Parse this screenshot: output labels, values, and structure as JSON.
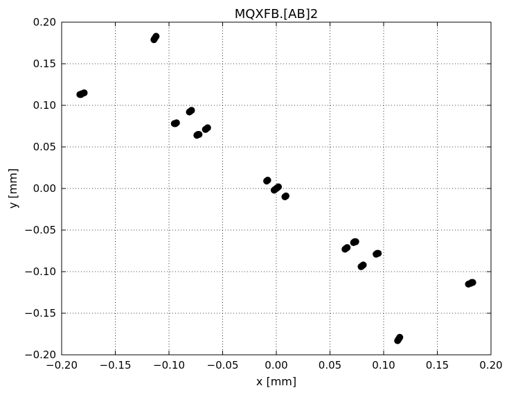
{
  "chart_data": {
    "type": "scatter",
    "title": "MQXFB.[AB]2",
    "xlabel": "x [mm]",
    "ylabel": "y [mm]",
    "xlim": [
      -0.2,
      0.2
    ],
    "ylim": [
      -0.2,
      0.2
    ],
    "xticks": [
      -0.2,
      -0.15,
      -0.1,
      -0.05,
      0.0,
      0.05,
      0.1,
      0.15,
      0.2
    ],
    "yticks": [
      -0.2,
      -0.15,
      -0.1,
      -0.05,
      0.0,
      0.05,
      0.1,
      0.15,
      0.2
    ],
    "xtick_labels": [
      "−0.20",
      "−0.15",
      "−0.10",
      "−0.05",
      "0.00",
      "0.05",
      "0.10",
      "0.15",
      "0.20"
    ],
    "ytick_labels": [
      "−0.20",
      "−0.15",
      "−0.10",
      "−0.05",
      "0.00",
      "0.05",
      "0.10",
      "0.15",
      "0.20"
    ],
    "grid": true,
    "marker_color": "#000000",
    "series": [
      {
        "points": [
          [
            -0.183,
            0.113
          ],
          [
            -0.182,
            0.113
          ],
          [
            -0.181,
            0.114
          ],
          [
            -0.179,
            0.115
          ],
          [
            -0.114,
            0.179
          ],
          [
            -0.113,
            0.181
          ],
          [
            -0.112,
            0.183
          ],
          [
            -0.095,
            0.078
          ],
          [
            -0.094,
            0.078
          ],
          [
            -0.093,
            0.079
          ],
          [
            -0.081,
            0.092
          ],
          [
            -0.08,
            0.093
          ],
          [
            -0.079,
            0.094
          ],
          [
            -0.074,
            0.064
          ],
          [
            -0.073,
            0.065
          ],
          [
            -0.072,
            0.065
          ],
          [
            -0.066,
            0.071
          ],
          [
            -0.065,
            0.072
          ],
          [
            -0.064,
            0.073
          ],
          [
            -0.009,
            0.009
          ],
          [
            -0.008,
            0.01
          ],
          [
            -0.002,
            -0.002
          ],
          [
            -0.001,
            -0.001
          ],
          [
            0.0,
            0.0
          ],
          [
            0.001,
            0.001
          ],
          [
            0.002,
            0.002
          ],
          [
            0.008,
            -0.01
          ],
          [
            0.009,
            -0.009
          ],
          [
            0.064,
            -0.073
          ],
          [
            0.065,
            -0.072
          ],
          [
            0.066,
            -0.071
          ],
          [
            0.072,
            -0.065
          ],
          [
            0.073,
            -0.064
          ],
          [
            0.074,
            -0.064
          ],
          [
            0.079,
            -0.094
          ],
          [
            0.08,
            -0.093
          ],
          [
            0.081,
            -0.092
          ],
          [
            0.093,
            -0.079
          ],
          [
            0.094,
            -0.078
          ],
          [
            0.095,
            -0.078
          ],
          [
            0.113,
            -0.183
          ],
          [
            0.114,
            -0.181
          ],
          [
            0.115,
            -0.179
          ],
          [
            0.179,
            -0.115
          ],
          [
            0.181,
            -0.114
          ],
          [
            0.182,
            -0.113
          ],
          [
            0.183,
            -0.113
          ]
        ]
      }
    ]
  }
}
